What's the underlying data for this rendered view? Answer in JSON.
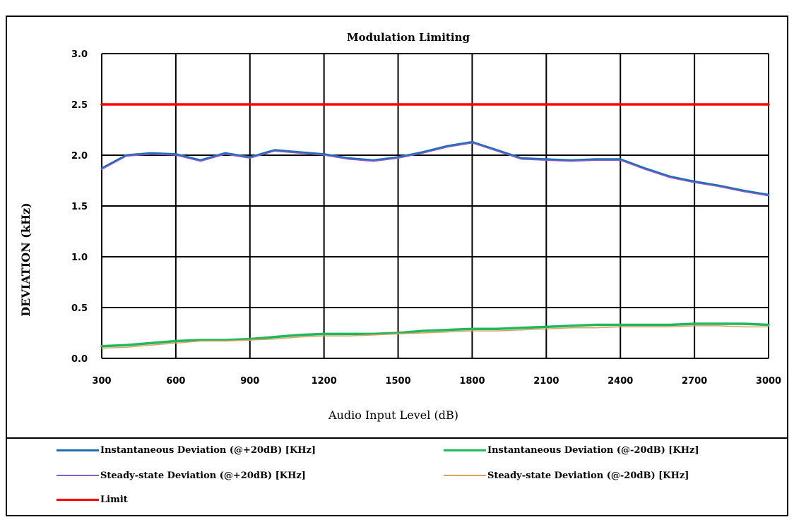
{
  "chart_data": {
    "type": "line",
    "title": "Modulation Limiting",
    "xlabel": "Audio Input Level (dB)",
    "ylabel": "DEVIATION (kHz)",
    "xlim": [
      300,
      3000
    ],
    "ylim": [
      0.0,
      3.0
    ],
    "x_ticks": [
      "300",
      "600",
      "900",
      "1200",
      "1500",
      "1800",
      "2100",
      "2400",
      "2700",
      "3000"
    ],
    "y_ticks": [
      "0.0",
      "0.5",
      "1.0",
      "1.5",
      "2.0",
      "2.5",
      "3.0"
    ],
    "grid": true,
    "legend_position": "bottom",
    "colors": {
      "instantaneous_plus": "#1f6fb5",
      "instantaneous_minus": "#1fb85a",
      "steady_plus": "#8a5cc8",
      "steady_minus": "#e0a060",
      "limit": "#ff0000"
    },
    "series": [
      {
        "name": "Instantaneous Deviation (@+20dB) [KHz]",
        "color": "#1f6fb5",
        "x": [
          300,
          400,
          500,
          600,
          700,
          800,
          900,
          1000,
          1100,
          1200,
          1300,
          1400,
          1500,
          1600,
          1700,
          1800,
          1900,
          2000,
          2100,
          2200,
          2300,
          2400,
          2500,
          2600,
          2700,
          2800,
          2900,
          3000
        ],
        "y": [
          1.87,
          2.0,
          2.02,
          2.01,
          1.95,
          2.02,
          1.98,
          2.05,
          2.03,
          2.01,
          1.97,
          1.95,
          1.98,
          2.03,
          2.09,
          2.13,
          2.05,
          1.97,
          1.96,
          1.95,
          1.96,
          1.96,
          1.87,
          1.79,
          1.74,
          1.7,
          1.65,
          1.61
        ]
      },
      {
        "name": "Instantaneous Deviation (@-20dB) [KHz]",
        "color": "#1fb85a",
        "x": [
          300,
          400,
          500,
          600,
          700,
          800,
          900,
          1000,
          1100,
          1200,
          1300,
          1400,
          1500,
          1600,
          1700,
          1800,
          1900,
          2000,
          2100,
          2200,
          2300,
          2400,
          2500,
          2600,
          2700,
          2800,
          2900,
          3000
        ],
        "y": [
          0.12,
          0.13,
          0.15,
          0.17,
          0.18,
          0.18,
          0.19,
          0.21,
          0.23,
          0.24,
          0.24,
          0.24,
          0.25,
          0.27,
          0.28,
          0.29,
          0.29,
          0.3,
          0.31,
          0.32,
          0.33,
          0.33,
          0.33,
          0.33,
          0.34,
          0.34,
          0.34,
          0.33
        ]
      },
      {
        "name": "Steady-state Deviation (@+20dB) [KHz]",
        "color": "#8a5cc8",
        "x": [
          300,
          400,
          500,
          600,
          700,
          800,
          900,
          1000,
          1100,
          1200,
          1300,
          1400,
          1500,
          1600,
          1700,
          1800,
          1900,
          2000,
          2100,
          2200,
          2300,
          2400,
          2500,
          2600,
          2700,
          2800,
          2900,
          3000
        ],
        "y": [
          1.86,
          1.99,
          2.01,
          2.0,
          1.94,
          2.01,
          1.97,
          2.04,
          2.02,
          2.0,
          1.96,
          1.94,
          1.97,
          2.02,
          2.08,
          2.12,
          2.04,
          1.96,
          1.95,
          1.94,
          1.95,
          1.95,
          1.86,
          1.78,
          1.73,
          1.69,
          1.64,
          1.6
        ]
      },
      {
        "name": "Steady-state Deviation (@-20dB) [KHz]",
        "color": "#e0a060",
        "x": [
          300,
          400,
          500,
          600,
          700,
          800,
          900,
          1000,
          1100,
          1200,
          1300,
          1400,
          1500,
          1600,
          1700,
          1800,
          1900,
          2000,
          2100,
          2200,
          2300,
          2400,
          2500,
          2600,
          2700,
          2800,
          2900,
          3000
        ],
        "y": [
          0.1,
          0.11,
          0.13,
          0.15,
          0.17,
          0.17,
          0.18,
          0.19,
          0.21,
          0.22,
          0.22,
          0.23,
          0.24,
          0.25,
          0.26,
          0.27,
          0.27,
          0.28,
          0.29,
          0.3,
          0.3,
          0.31,
          0.31,
          0.31,
          0.32,
          0.32,
          0.31,
          0.31
        ]
      },
      {
        "name": "Limit",
        "color": "#ff0000",
        "x": [
          300,
          3000
        ],
        "y": [
          2.5,
          2.5
        ]
      }
    ]
  }
}
